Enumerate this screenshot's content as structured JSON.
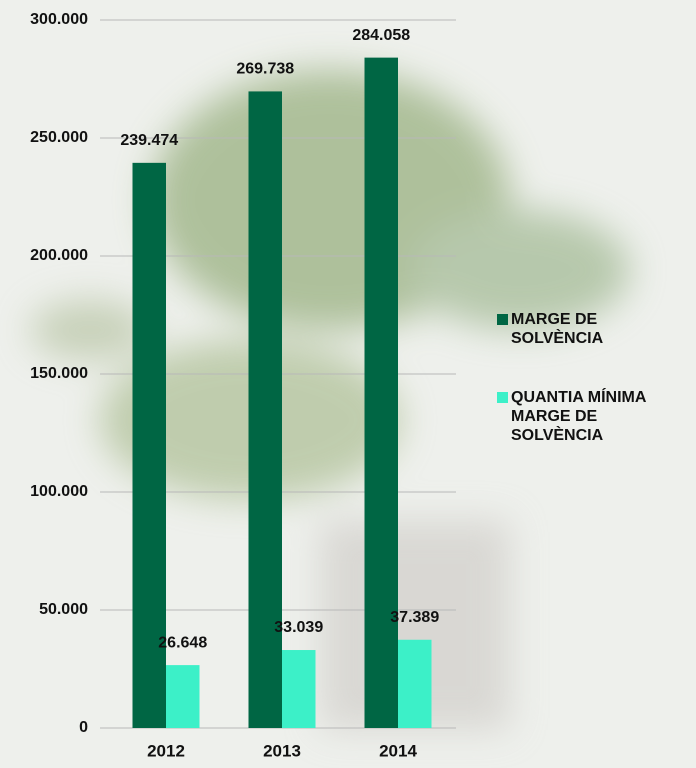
{
  "chart_data": {
    "type": "bar",
    "categories": [
      "2012",
      "2013",
      "2014"
    ],
    "series": [
      {
        "name": "MARGE DE SOLVÈNCIA",
        "color": "#006644",
        "values": [
          239474,
          269738,
          284058
        ],
        "value_labels": [
          "239.474",
          "269.738",
          "284.058"
        ]
      },
      {
        "name": "QUANTIA MÍNIMA MARGE DE SOLVÈNCIA",
        "color": "#3cf0c8",
        "values": [
          26648,
          33039,
          37389
        ],
        "value_labels": [
          "26.648",
          "33.039",
          "37.389"
        ]
      }
    ],
    "ylim": [
      0,
      300000
    ],
    "yticks": [
      {
        "value": 0,
        "label": "0"
      },
      {
        "value": 50000,
        "label": "50.000"
      },
      {
        "value": 100000,
        "label": "100.000"
      },
      {
        "value": 150000,
        "label": "150.000"
      },
      {
        "value": 200000,
        "label": "200.000"
      },
      {
        "value": 250000,
        "label": "250.000"
      },
      {
        "value": 300000,
        "label": "300.000"
      }
    ],
    "grid": true,
    "legend": "right"
  }
}
